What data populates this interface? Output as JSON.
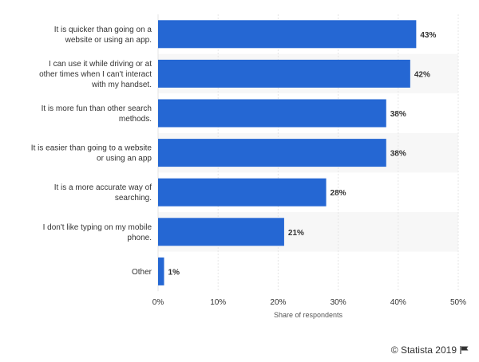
{
  "chart_data": {
    "type": "bar",
    "orientation": "horizontal",
    "categories": [
      "It is quicker than going on a website or using an app.",
      "I can use it while driving or at other times when I can't interact with my handset.",
      "It is more fun than other search methods.",
      "It is easier than going to a website or using an app",
      "It is a more accurate way of searching.",
      "I don't like typing on my mobile phone.",
      "Other"
    ],
    "values": [
      43,
      42,
      38,
      38,
      28,
      21,
      1
    ],
    "value_labels": [
      "43%",
      "42%",
      "38%",
      "38%",
      "28%",
      "21%",
      "1%"
    ],
    "xlabel": "Share of respondents",
    "ylabel": "",
    "xlim": [
      0,
      50
    ],
    "ticks": [
      0,
      10,
      20,
      30,
      40,
      50
    ],
    "tick_labels": [
      "0%",
      "10%",
      "20%",
      "30%",
      "40%",
      "50%"
    ],
    "grid": true,
    "bar_color": "#2567d3",
    "stripe_color": "#f7f7f7",
    "grid_color": "#e6e6e6",
    "text_color": "#333333",
    "value_label_color": "#333333"
  },
  "footer": {
    "credit": "© Statista 2019",
    "flag_icon": "flag-icon"
  }
}
